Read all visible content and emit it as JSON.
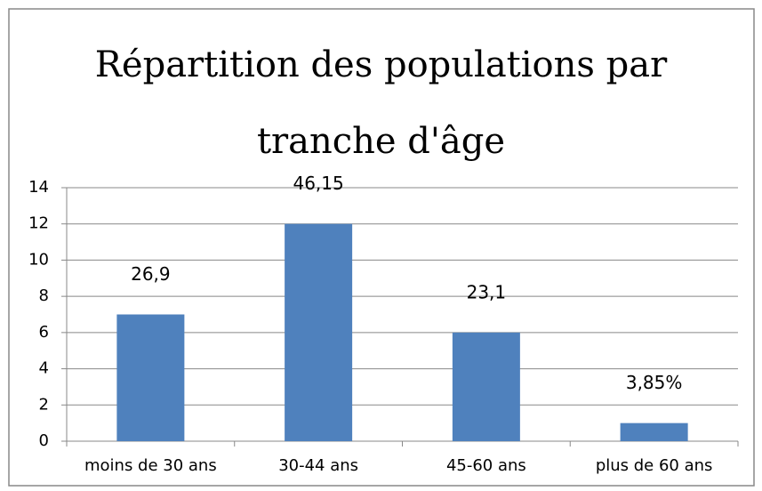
{
  "chart_data": {
    "type": "bar",
    "title": "Répartition des populations par tranche d'âge",
    "categories": [
      "moins de 30 ans",
      "30-44 ans",
      "45-60 ans",
      "plus de 60 ans"
    ],
    "values": [
      7,
      12,
      6,
      1
    ],
    "annotations": [
      "26,9",
      "46,15",
      "23,1",
      "3,85%"
    ],
    "color": "#4f81bd",
    "ylim": [
      0,
      14
    ],
    "yticks": [
      0,
      2,
      4,
      6,
      8,
      10,
      12,
      14
    ],
    "grid": true
  }
}
